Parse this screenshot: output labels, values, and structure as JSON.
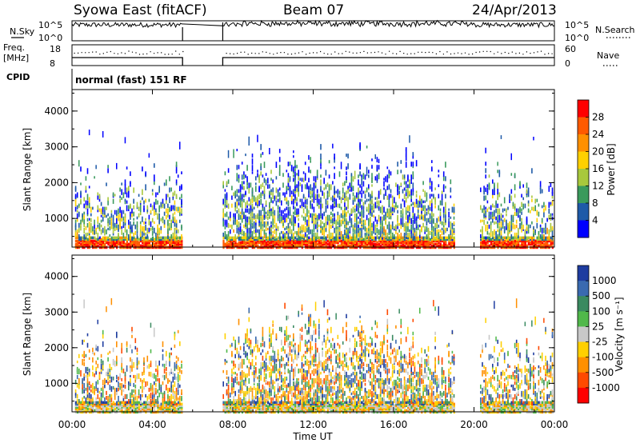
{
  "header": {
    "station": "Syowa East (fitACF)",
    "beam": "Beam 07",
    "date": "24/Apr/2013"
  },
  "side_labels": {
    "nsky": "N.Sky",
    "nsearch": "N.Search",
    "freq_line1": "Freq.",
    "freq_line2": "[MHz]",
    "nave": "Nave",
    "cpid": "CPID"
  },
  "top_axes": {
    "nsky_ticks": [
      "10^5",
      "10^0"
    ],
    "nsearch_ticks": [
      "10^5",
      "10^0"
    ],
    "freq_ticks": [
      "18",
      "8"
    ],
    "nave_ticks": [
      "60",
      "0"
    ]
  },
  "cpid_text": "normal (fast) 151 RF",
  "chart_data": [
    {
      "type": "heatmap",
      "name": "power",
      "ylabel": "Slant Range [km]",
      "xlabel": "",
      "x_range_hours": [
        0,
        24
      ],
      "ylim": [
        200,
        4600
      ],
      "yticks": [
        "4000",
        "3000",
        "2000",
        "1000"
      ],
      "xticks": [
        "00:00",
        "04:00",
        "08:00",
        "12:00",
        "16:00",
        "20:00",
        "00:00"
      ],
      "colorbar": {
        "label": "Power [dB]",
        "ticks": [
          "28",
          "24",
          "20",
          "16",
          "12",
          "8",
          "4"
        ],
        "colors": [
          "#ff0000",
          "#ff5a00",
          "#ff9000",
          "#ffd000",
          "#a8c83c",
          "#3a9a5c",
          "#1e5aa8",
          "#0000ff"
        ]
      },
      "data_gaps_hours": [
        [
          5.5,
          7.5
        ]
      ]
    },
    {
      "type": "heatmap",
      "name": "velocity",
      "ylabel": "Slant Range [km]",
      "xlabel": "Time UT",
      "x_range_hours": [
        0,
        24
      ],
      "ylim": [
        200,
        4600
      ],
      "yticks": [
        "4000",
        "3000",
        "2000",
        "1000"
      ],
      "xticks": [
        "00:00",
        "04:00",
        "08:00",
        "12:00",
        "16:00",
        "20:00",
        "00:00"
      ],
      "colorbar": {
        "label": "Velocity [m s⁻¹]",
        "ticks": [
          "1000",
          "500",
          "100",
          "25",
          "-25",
          "-100",
          "-500",
          "-1000"
        ],
        "colors": [
          "#1e3ca0",
          "#3a6ab0",
          "#3a8a60",
          "#50b84a",
          "#c8c8c8",
          "#ffd000",
          "#ff9000",
          "#ff4a00",
          "#ff0000"
        ]
      },
      "data_gaps_hours": [
        [
          5.5,
          7.5
        ]
      ]
    }
  ],
  "colors": {
    "frame": "#000000",
    "background": "#ffffff"
  }
}
